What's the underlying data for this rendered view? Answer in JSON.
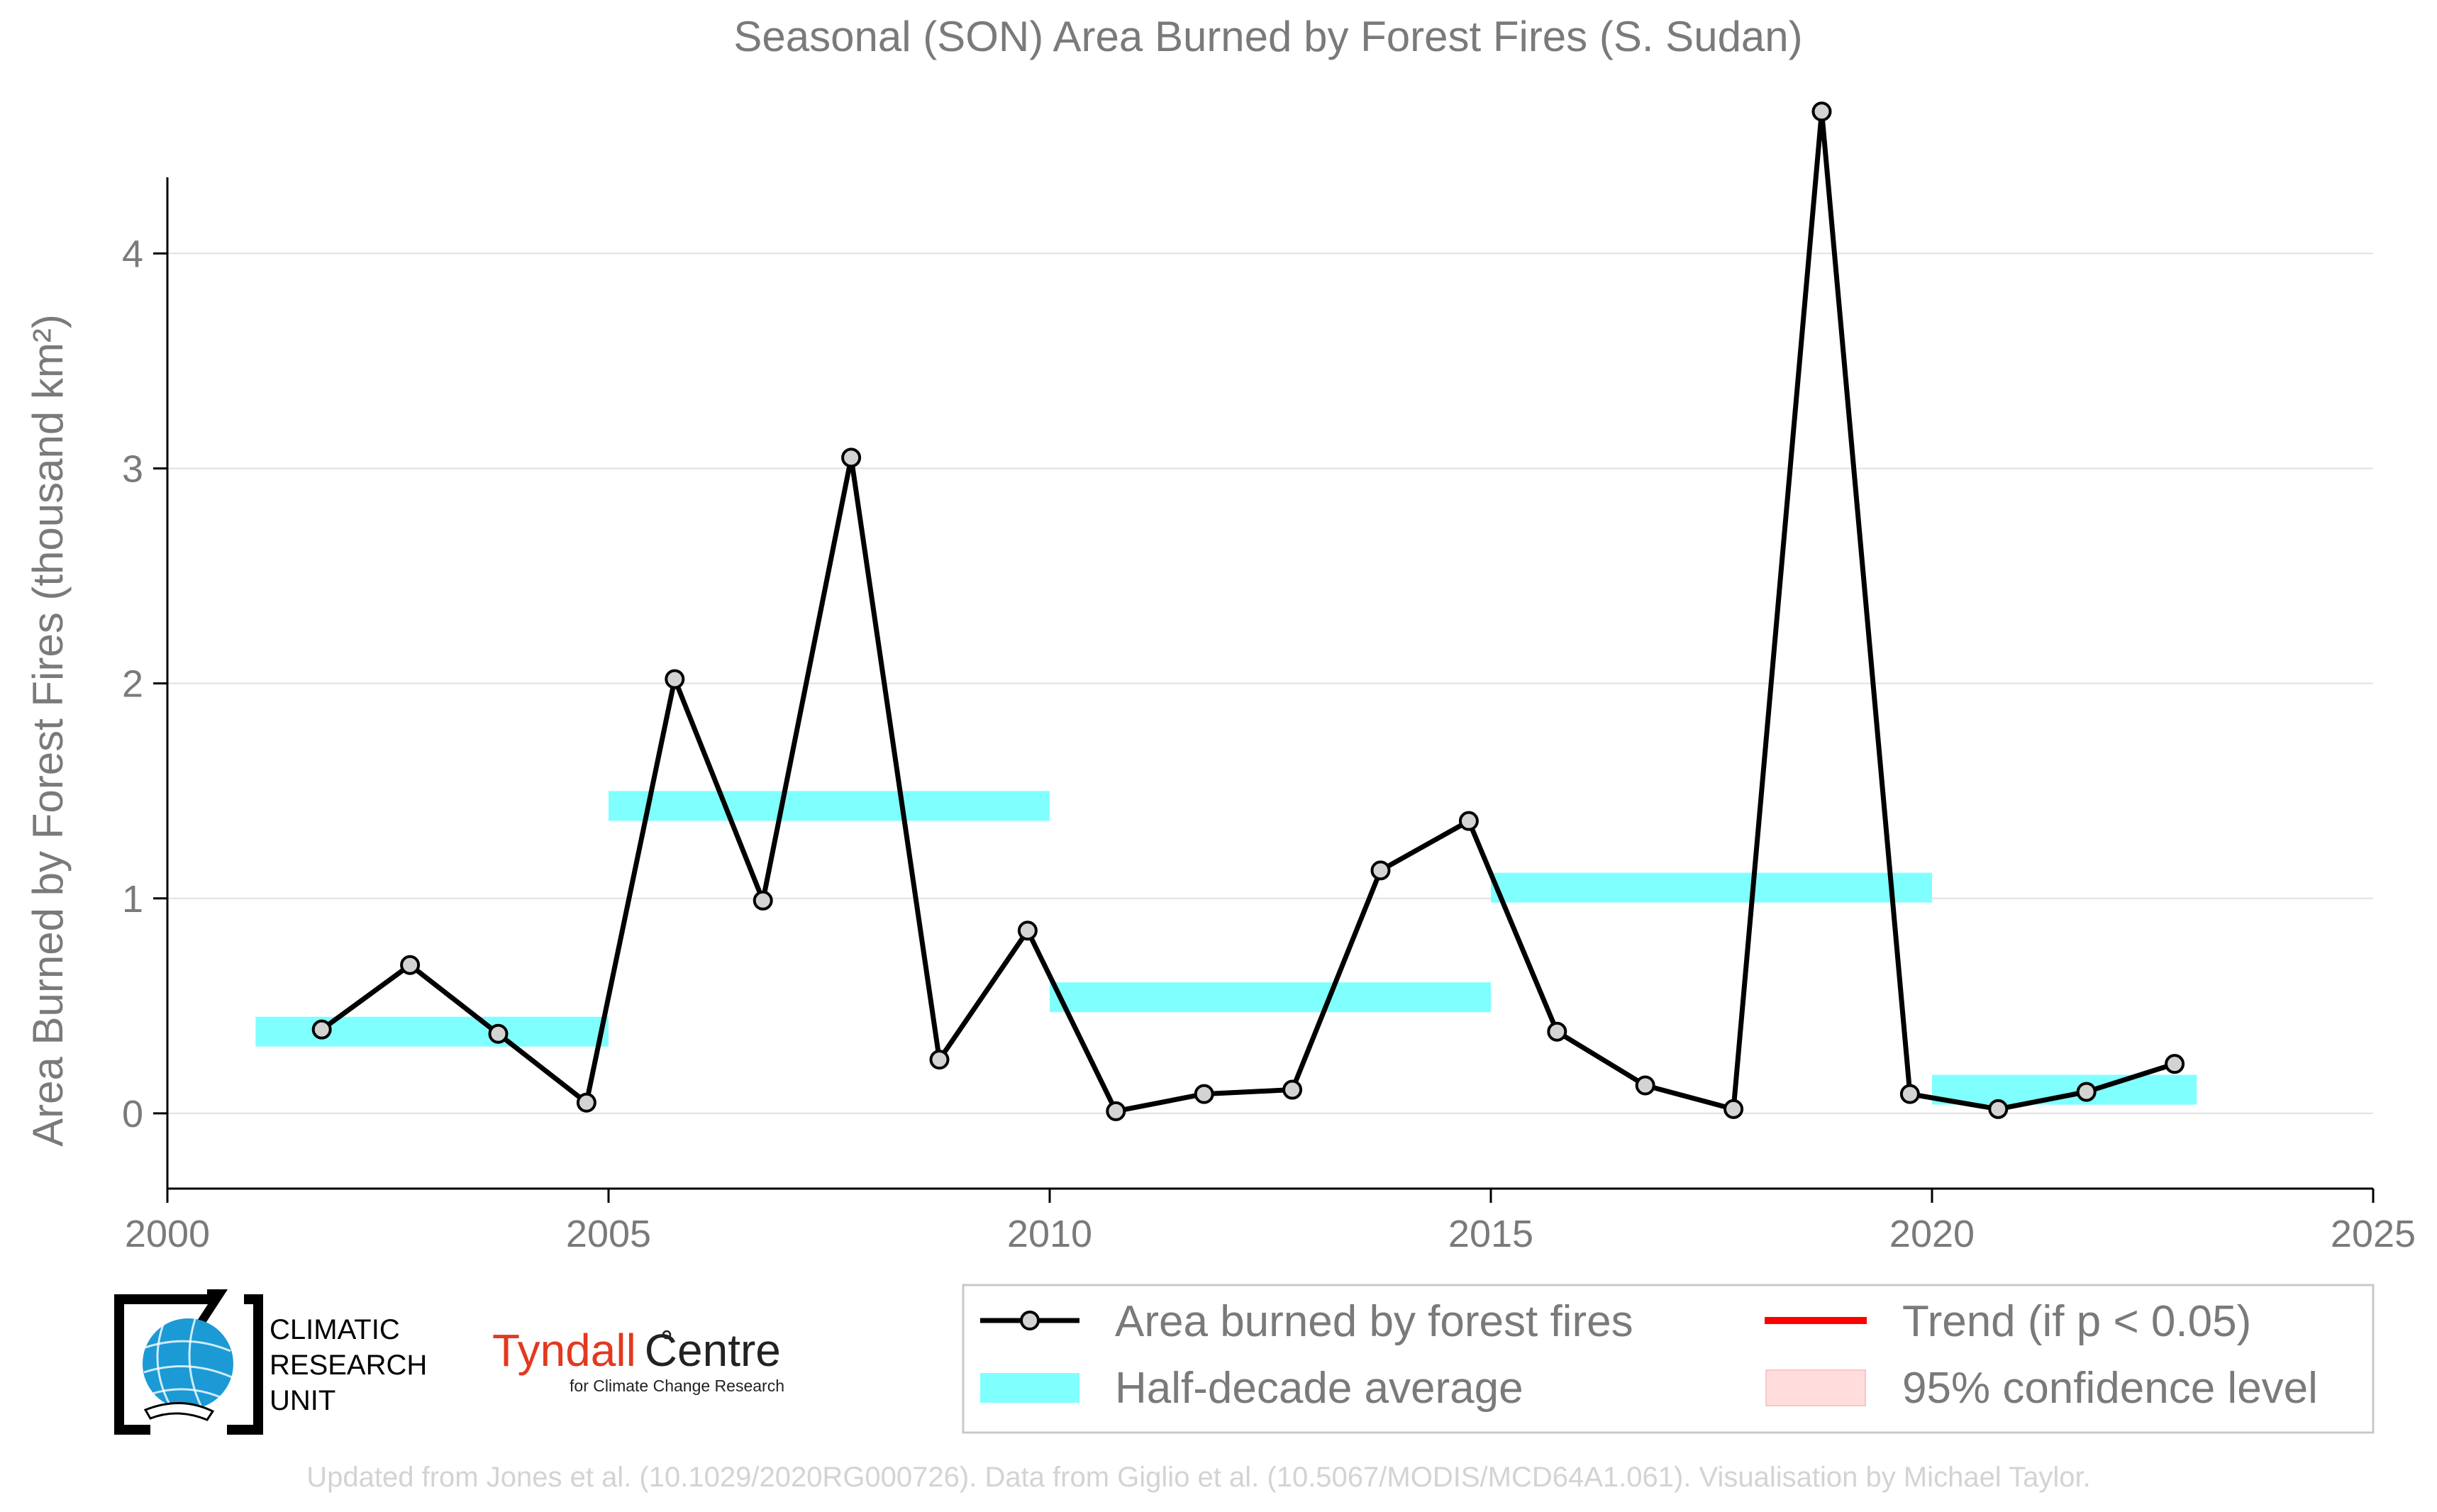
{
  "colors": {
    "line": "#000000",
    "marker_fill": "#d3d3d3",
    "half_decade": "#80ffff",
    "trend": "#ff0000",
    "confidence": "#ffdddd",
    "grid": "#e0e0e0",
    "text": "#7a7a7a",
    "cru_blue": "#1b9ad6",
    "tyndall_red": "#e2391f"
  },
  "chart_data": {
    "type": "line",
    "title": "Seasonal (SON) Area Burned by Forest Fires (S. Sudan)",
    "ylabel": "Area Burned by Forest Fires (thousand km²)",
    "xlabel": "",
    "xlim": [
      2000,
      2025
    ],
    "ylim": [
      -0.35,
      4.75
    ],
    "x_ticks": [
      2000,
      2005,
      2010,
      2015,
      2020,
      2025
    ],
    "y_ticks": [
      0,
      1,
      2,
      3,
      4
    ],
    "grid": "horizontal",
    "legend_placement": "bottom-right",
    "series": [
      {
        "name": "Area burned by forest fires",
        "x": [
          2001.75,
          2002.75,
          2003.75,
          2004.75,
          2005.75,
          2006.75,
          2007.75,
          2008.75,
          2009.75,
          2010.75,
          2011.75,
          2012.75,
          2013.75,
          2014.75,
          2015.75,
          2016.75,
          2017.75,
          2018.75,
          2019.75,
          2020.75,
          2021.75,
          2022.75
        ],
        "y": [
          0.39,
          0.69,
          0.37,
          0.05,
          2.02,
          0.99,
          3.05,
          0.25,
          0.85,
          0.01,
          0.09,
          0.11,
          1.13,
          1.36,
          0.38,
          0.13,
          0.02,
          4.66,
          0.09,
          0.02,
          0.1,
          0.23
        ]
      }
    ],
    "half_decade_average": {
      "name": "Half-decade average",
      "segments": [
        {
          "start": 2001,
          "end": 2005,
          "value": 0.38
        },
        {
          "start": 2005,
          "end": 2010,
          "value": 1.43
        },
        {
          "start": 2010,
          "end": 2015,
          "value": 0.54
        },
        {
          "start": 2015,
          "end": 2020,
          "value": 1.05
        },
        {
          "start": 2020,
          "end": 2023,
          "value": 0.11
        }
      ]
    },
    "legend": [
      {
        "key": "series",
        "label": "Area burned by forest fires"
      },
      {
        "key": "trend",
        "label": "Trend (if p < 0.05)"
      },
      {
        "key": "half",
        "label": "Half-decade average"
      },
      {
        "key": "ci",
        "label": "95% confidence level"
      }
    ]
  },
  "logos": {
    "cru": [
      "CLIMATIC",
      "RESEARCH",
      "UNIT"
    ],
    "tyndall_main": "Tyndall",
    "tyndall_centre": "Centre",
    "tyndall_sub": "for Climate Change Research"
  },
  "footer": "Updated from Jones et al. (10.1029/2020RG000726). Data from Giglio et al. (10.5067/MODIS/MCD64A1.061). Visualisation by Michael Taylor."
}
